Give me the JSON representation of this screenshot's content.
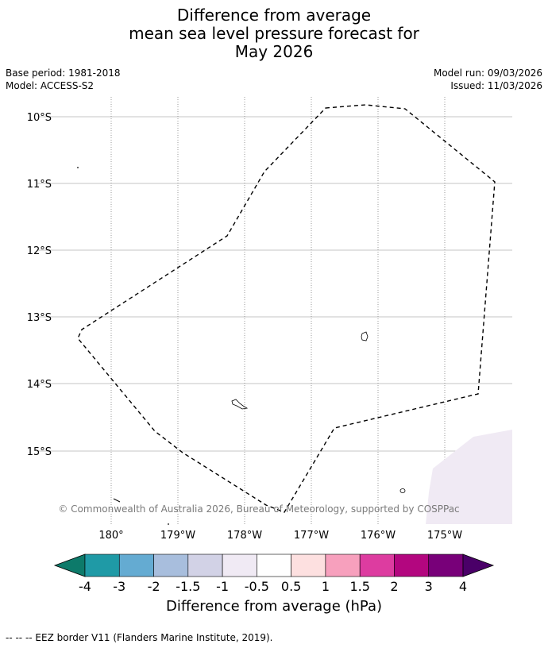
{
  "title": {
    "line1": "Difference from average",
    "line2": "mean sea level pressure forecast for",
    "line3": "May 2026"
  },
  "meta": {
    "base_period": "Base period: 1981-2018",
    "model": "Model: ACCESS-S2",
    "model_run": "Model run: 09/03/2026",
    "issued": "Issued: 11/03/2026"
  },
  "map": {
    "lat_labels": [
      "10°S",
      "11°S",
      "12°S",
      "13°S",
      "14°S",
      "15°S"
    ],
    "lon_labels": [
      "180°",
      "179°W",
      "178°W",
      "177°W",
      "176°W",
      "175°W"
    ],
    "copyright": "© Commonwealth of Australia 2026, Bureau of Meteorology, supported by COSPPac",
    "shading_color": "#f0eaf4",
    "gridline_color": "#bbbbbb"
  },
  "colorbar": {
    "label": "Difference from average (hPa)",
    "tick_labels": [
      "-4",
      "-3",
      "-2",
      "-1.5",
      "-1",
      "-0.5",
      "0.5",
      "1",
      "1.5",
      "2",
      "3",
      "4"
    ],
    "colors": [
      "#0d7a6a",
      "#1f9aa6",
      "#64abd2",
      "#a8bedd",
      "#d2d2e6",
      "#f0eaf4",
      "#ffffff",
      "#fde0e0",
      "#f7a0bd",
      "#dd3ca0",
      "#b3067f",
      "#780079",
      "#4a0068"
    ]
  },
  "footer": {
    "legend": "--  --  -- EEZ border V11 (Flanders Marine Institute, 2019)."
  }
}
